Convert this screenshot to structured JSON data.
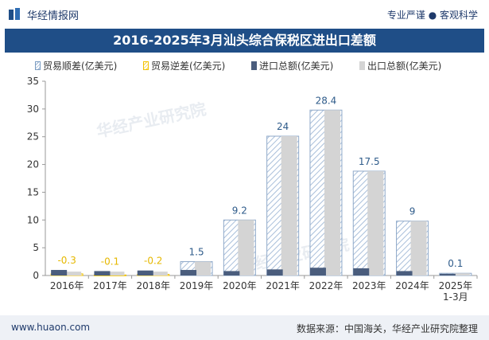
{
  "header": {
    "brand": "华经情报网",
    "slogan": "专业严谨 ● 客观科学"
  },
  "footer": {
    "website": "www.huaon.com",
    "source": "数据来源：中国海关，华经产业研究院整理"
  },
  "watermark": {
    "text": "华经产业研究院",
    "url": "www.huaon.com"
  },
  "colors": {
    "title_bg": "#1f4e87",
    "import": "#4a5d7d",
    "export": "#d4d4d4",
    "surplus_label": "#2e5b8a",
    "deficit_label": "#e6b800",
    "surplus_hatch": "#9bb3d1"
  },
  "chart_data": {
    "type": "bar",
    "title": "2016-2025年3月汕头综合保税区进出口差额",
    "categories": [
      "2016年",
      "2017年",
      "2018年",
      "2019年",
      "2020年",
      "2021年",
      "2022年",
      "2023年",
      "2024年",
      "2025年 1-3月"
    ],
    "ylim": [
      0,
      35
    ],
    "yticks": [
      0,
      5,
      10,
      15,
      20,
      25,
      30,
      35
    ],
    "legend": [
      "贸易顺差(亿美元)",
      "贸易逆差(亿美元)",
      "进口总额(亿美元)",
      "出口总额(亿美元)"
    ],
    "series": [
      {
        "name": "贸易顺差(亿美元)",
        "values": [
          null,
          null,
          null,
          1.5,
          9.2,
          24,
          28.4,
          17.5,
          9,
          0.1
        ]
      },
      {
        "name": "贸易逆差(亿美元)",
        "values": [
          -0.3,
          -0.1,
          -0.2,
          null,
          null,
          null,
          null,
          null,
          null,
          null
        ]
      },
      {
        "name": "进口总额(亿美元)",
        "values": [
          1.0,
          0.8,
          0.9,
          1.0,
          0.8,
          1.1,
          1.4,
          1.3,
          0.8,
          0.3
        ]
      },
      {
        "name": "出口总额(亿美元)",
        "values": [
          0.7,
          0.7,
          0.7,
          2.5,
          10.0,
          25.1,
          29.8,
          18.8,
          9.8,
          0.4
        ]
      }
    ],
    "data_labels": [
      "-0.3",
      "-0.1",
      "-0.2",
      "1.5",
      "9.2",
      "24",
      "28.4",
      "17.5",
      "9",
      "0.1"
    ]
  }
}
